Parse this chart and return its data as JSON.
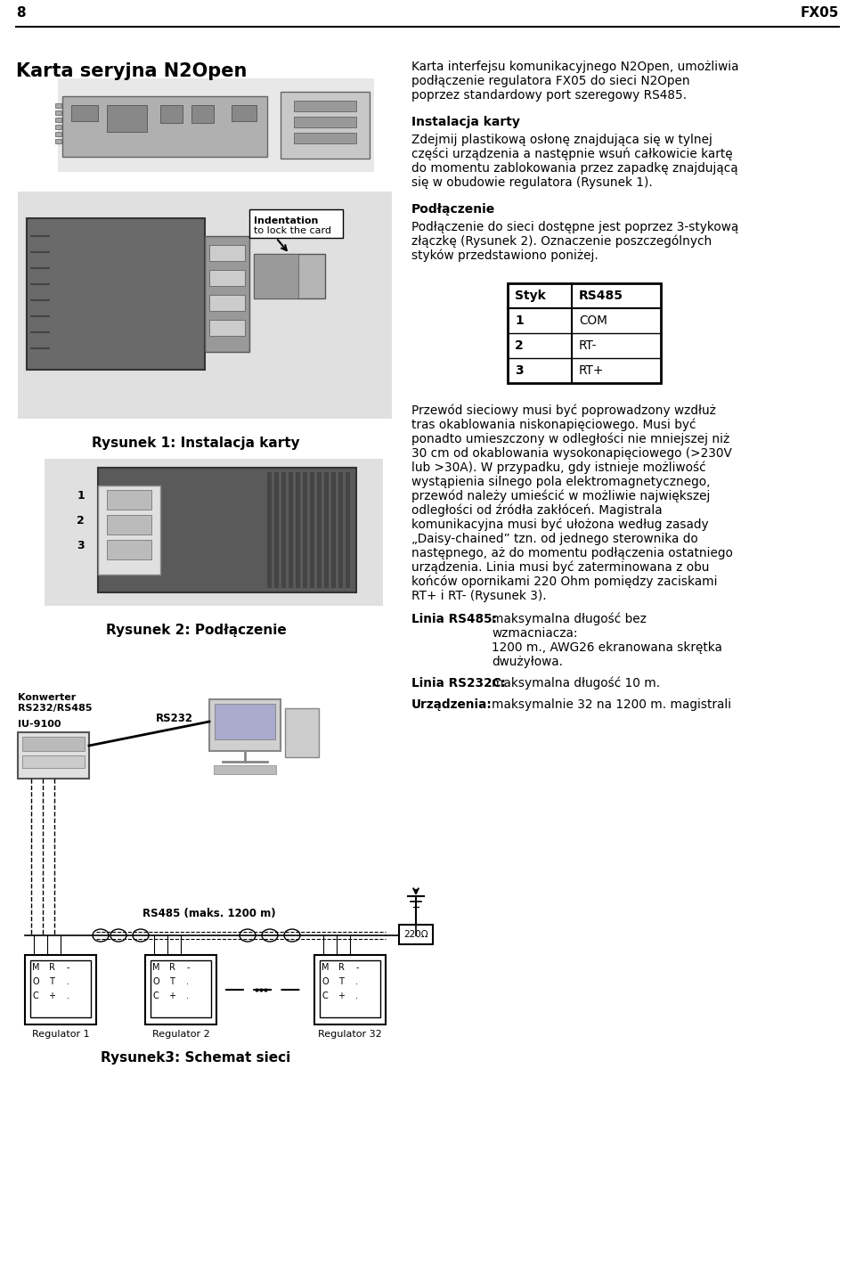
{
  "page_num": "8",
  "page_header_right": "FX05",
  "section_title": "Karta seryjna N2Open",
  "right_text_block1": [
    "Karta interfejsu komunikacyjnego N2Open, umożliwia",
    "podłączenie regulatora FX05 do sieci N2Open",
    "poprzez standardowy port szeregowy RS485."
  ],
  "install_title": "Instalacja karty",
  "install_text": [
    "Zdejmij plastikową osłonę znajdująca się w tylnej",
    "części urządzenia a następnie wsuń całkowicie kartę",
    "do momentu zablokowania przez zapadkę znajdującą",
    "się w obudowie regulatora (Rysunek 1)."
  ],
  "podlaczenie_title": "Podłączenie",
  "podlaczenie_text": [
    "Podłączenie do sieci dostępne jest poprzez 3-stykową",
    "złączkę (Rysunek 2). Oznaczenie poszczególnych",
    "styków przedstawiono poniżej."
  ],
  "table_header": [
    "Styk",
    "RS485"
  ],
  "table_rows": [
    [
      "1",
      "COM"
    ],
    [
      "2",
      "RT-"
    ],
    [
      "3",
      "RT+"
    ]
  ],
  "fig1_caption": "Rysunek 1: Instalacja karty",
  "fig2_caption": "Rysunek 2: Podłączenie",
  "fig3_caption": "Rysunek3: Schemat sieci",
  "label_konwerter1": "Konwerter",
  "label_konwerter2": "RS232/RS485",
  "label_iu": "IU-9100",
  "label_rs232": "RS232",
  "label_rs485": "RS485 (maks. 1200 m)",
  "label_220": "220Ω",
  "label_reg1": "Regulator 1",
  "label_reg2": "Regulator 2",
  "label_reg32": "Regulator 32",
  "label_indentation1": "Indentation",
  "label_indentation2": "to lock the card",
  "nums_labels": [
    "1",
    "2",
    "3"
  ],
  "right_body_text": [
    "Przewód sieciowy musi być poprowadzony wzdłuż",
    "tras okablowania niskonapięciowego. Musi być",
    "ponadto umieszczony w odległości nie mniejszej niż",
    "30 cm od okablowania wysokonapięciowego (>230V",
    "lub >30A). W przypadku, gdy istnieje możliwość",
    "wystąpienia silnego pola elektromagnetycznego,",
    "przewód należy umieścić w możliwie największej",
    "odległości od źródła zakłóceń. Magistrala",
    "komunikacyjna musi być ułożona według zasady",
    "„Daisy-chained” tzn. od jednego sterownika do",
    "następnego, aż do momentu podłączenia ostatniego",
    "urządzenia. Linia musi być zaterminowana z obu",
    "końców opornikami 220 Ohm pomiędzy zaciskami",
    "RT+ i RT- (Rysunek 3)."
  ],
  "linia_rs485_title": "Linia RS485:",
  "linia_rs485_text": [
    "maksymalna długość bez",
    "wzmacniacza:",
    "1200 m., AWG26 ekranowana skrętka",
    "dwużyłowa."
  ],
  "linia_rs232c_title": "Linia RS232C:",
  "linia_rs232c_text": "maksymalna długość 10 m.",
  "urzadzenia_title": "Urządzenia:",
  "urzadzenia_text": "maksymalnie 32 na 1200 m. magistrali"
}
